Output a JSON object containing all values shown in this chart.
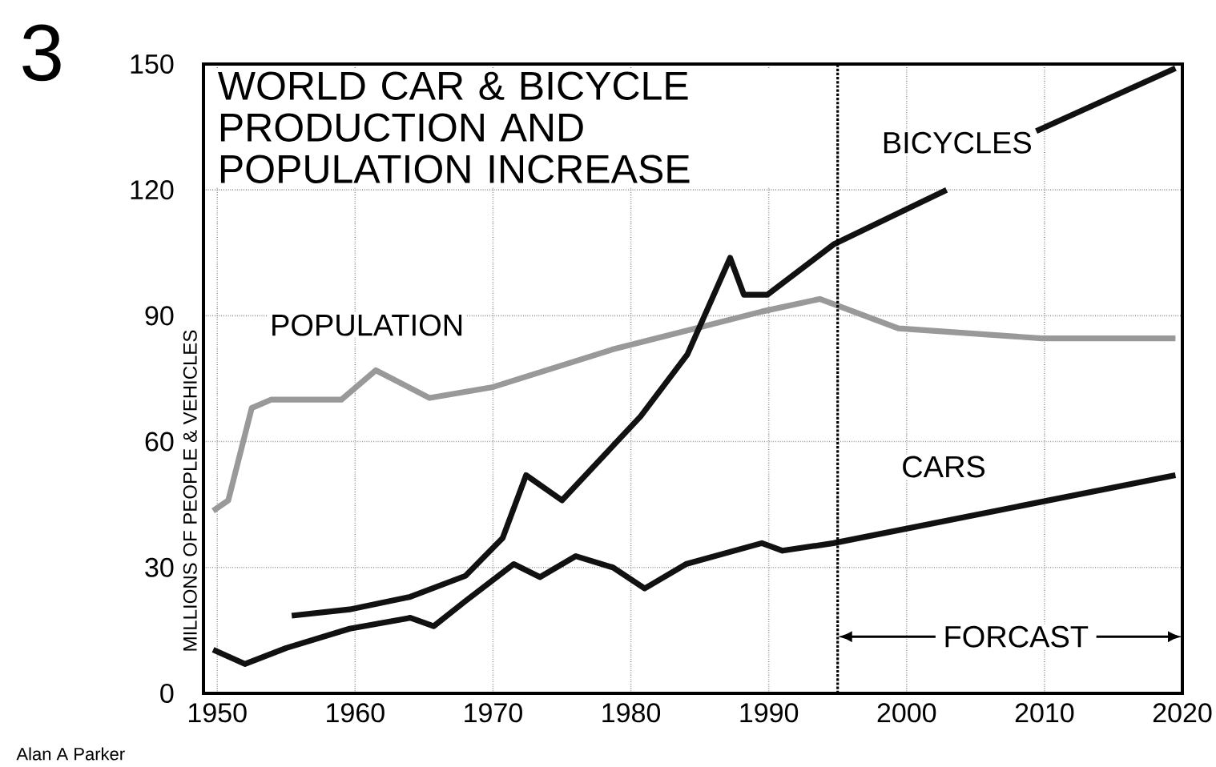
{
  "chart_data": {
    "type": "line",
    "title": "WORLD CAR & BICYCLE PRODUCTION AND POPULATION INCREASE",
    "ylabel": "MILLIONS OF PEOPLE & VEHICLES",
    "xlim": [
      1949,
      2020
    ],
    "xticks": [
      1950,
      1960,
      1970,
      1980,
      1990,
      2000,
      2010,
      2020
    ],
    "ylim": [
      0,
      150
    ],
    "yticks": [
      0,
      30,
      60,
      90,
      120,
      150
    ],
    "grid": true,
    "line_style": "solid",
    "marker": "none",
    "series": [
      {
        "name": "POPULATION",
        "color": "#999999",
        "x": [
          1949.7,
          1950.8,
          1952.5,
          1953.9,
          1959,
          1961.5,
          1965.4,
          1970,
          1978.7,
          1984.1,
          1989.5,
          1993.7,
          1999.4,
          2009.8,
          2019.5
        ],
        "values": [
          43.5,
          46,
          68,
          70,
          70,
          77,
          70.4,
          73,
          82,
          86.5,
          91,
          94,
          87,
          84.6,
          84.6
        ]
      },
      {
        "name": "BICYCLES",
        "color": "#111111",
        "x": [
          1955.4,
          1959.6,
          1964,
          1968,
          1970.7,
          1972.4,
          1975,
          1980.7,
          1984.1,
          1987.2,
          1988.2,
          1989.9,
          1994.7,
          2002.9,
          2006,
          2009.4,
          2019.5
        ],
        "values": [
          18.5,
          20,
          23,
          28,
          37,
          52,
          46,
          66,
          80.8,
          103.8,
          95,
          95,
          107,
          120,
          null,
          134,
          149
        ]
      },
      {
        "name": "CARS",
        "color": "#111111",
        "x": [
          1949.7,
          1952,
          1955,
          1959.6,
          1964,
          1965.7,
          1968,
          1971.5,
          1973.4,
          1976,
          1978.7,
          1981,
          1984,
          1989.5,
          1991,
          1994.7,
          2019.5
        ],
        "values": [
          10.4,
          7,
          10.8,
          15.4,
          18,
          16,
          22,
          30.8,
          27.7,
          32.7,
          30,
          25,
          30.8,
          35.8,
          34,
          35.8,
          52
        ]
      }
    ],
    "ref_lines": [
      {
        "axis": "x",
        "value": 1995,
        "line_style": "dotted"
      }
    ],
    "annotations": [
      "3",
      "Alan A Parker",
      "FORCAST"
    ]
  }
}
